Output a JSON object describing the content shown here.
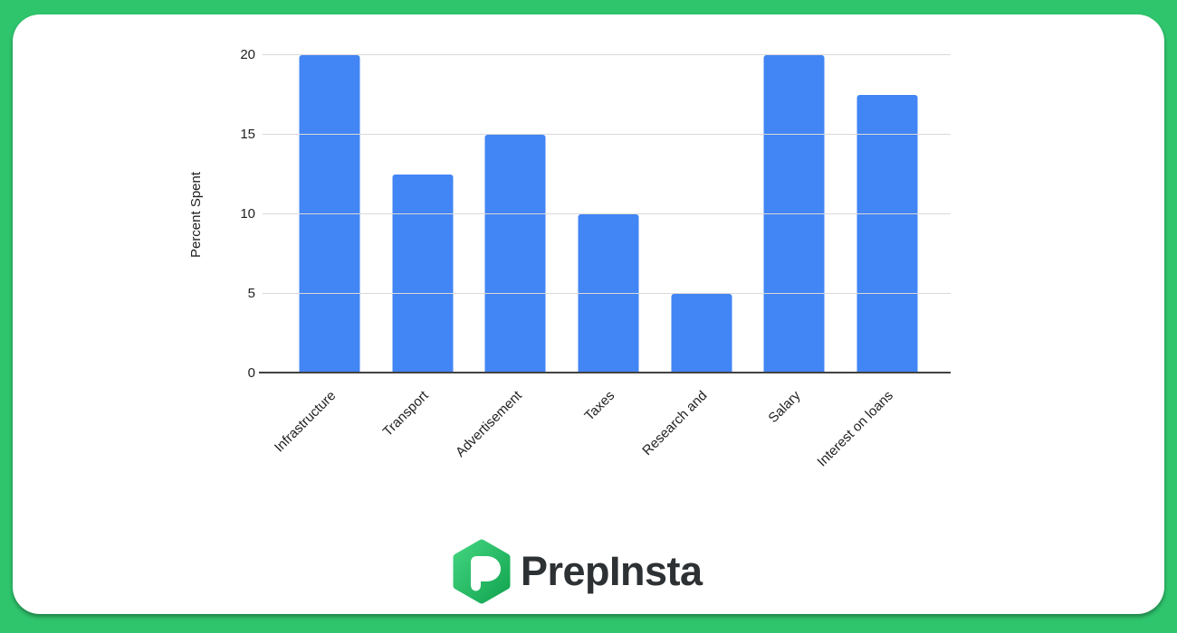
{
  "branding": {
    "logo_text": "PrepInsta",
    "logo_icon": "prepinsta-hexagon-p-icon",
    "border_color": "#2fc56d",
    "logo_gradient_start": "#41d37e",
    "logo_gradient_end": "#14a551",
    "logo_text_color": "#2d3134"
  },
  "chart_data": {
    "type": "bar",
    "title": "",
    "categories": [
      "Infrastructure",
      "Transport",
      "Advertisement",
      "Taxes",
      "Research and",
      "Salary",
      "Interest on loans"
    ],
    "values": [
      20,
      12.5,
      15,
      10,
      5,
      20,
      17.5
    ],
    "xlabel": "",
    "ylabel": "Percent Spent",
    "ylim": [
      0,
      20
    ],
    "yticks": [
      0,
      5,
      10,
      15,
      20
    ],
    "grid": true,
    "legend_position": "none",
    "bar_color": "#4285f4",
    "gridline_color": "#d9d9d9",
    "axis_line_color": "#424242",
    "x_label_rotation_deg": -45
  }
}
